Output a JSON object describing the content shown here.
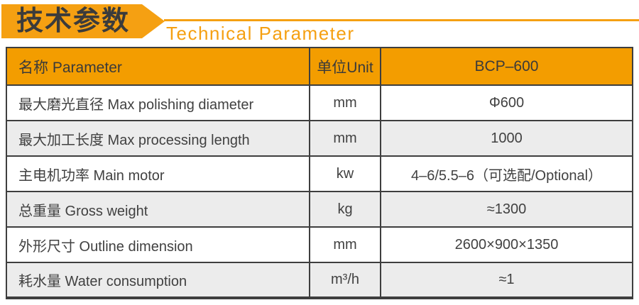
{
  "header": {
    "title_cn": "技术参数",
    "title_en": "Technical Parameter"
  },
  "colors": {
    "banner-orange": "#F5A012",
    "table-header-orange": "#F39D00",
    "title-text": "#3B3B3B",
    "border-dark": "#3E3E3E",
    "body-text": "#414141",
    "row-alt-gray": "#ECECEC"
  },
  "table": {
    "headers": [
      "名称 Parameter",
      "单位Unit",
      "BCP–600"
    ],
    "rows": [
      {
        "name": "最大磨光直径 Max polishing diameter",
        "unit": "mm",
        "value": "Φ600"
      },
      {
        "name": "最大加工长度 Max processing length",
        "unit": "mm",
        "value": "1000"
      },
      {
        "name": "主电机功率 Main motor",
        "unit": "kw",
        "value": "4–6/5.5–6（可选配/Optional）"
      },
      {
        "name": "总重量 Gross weight",
        "unit": "kg",
        "value": "≈1300"
      },
      {
        "name": "外形尺寸 Outline dimension",
        "unit": "mm",
        "value": "2600×900×1350"
      },
      {
        "name": "耗水量 Water consumption",
        "unit": "m³/h",
        "value": "≈1"
      }
    ]
  }
}
